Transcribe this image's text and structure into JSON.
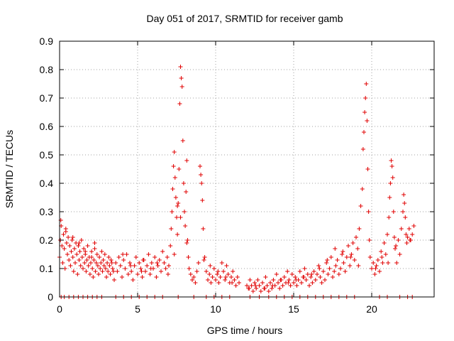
{
  "chart_data": {
    "type": "scatter",
    "title": "Day 051 of 2017, SRMTID for receiver gamb",
    "xlabel": "GPS time / hours",
    "ylabel": "SRMTID / TECUs",
    "xlim": [
      0,
      24
    ],
    "ylim": [
      0,
      0.9
    ],
    "xticks": [
      0,
      5,
      10,
      15,
      20
    ],
    "xtick_labels": [
      "0",
      "5",
      "10",
      "15",
      "20"
    ],
    "yticks": [
      0,
      0.1,
      0.2,
      0.3,
      0.4,
      0.5,
      0.6,
      0.7,
      0.8,
      0.9
    ],
    "ytick_labels": [
      "0",
      "0.1",
      "0.2",
      "0.3",
      "0.4",
      "0.5",
      "0.6",
      "0.7",
      "0.8",
      "0.9"
    ],
    "grid": true,
    "marker": "+",
    "series": [
      {
        "name": "SRMTID",
        "color": "#e00000",
        "x": [
          0.0,
          0.05,
          0.1,
          0.15,
          0.2,
          0.25,
          0.3,
          0.35,
          0.4,
          0.45,
          0.5,
          0.55,
          0.6,
          0.65,
          0.7,
          0.75,
          0.8,
          0.85,
          0.9,
          0.95,
          1.0,
          1.05,
          1.1,
          1.15,
          1.2,
          1.25,
          1.3,
          1.35,
          1.4,
          1.45,
          1.5,
          1.55,
          1.6,
          1.65,
          1.7,
          1.75,
          1.8,
          1.85,
          1.9,
          1.95,
          2.0,
          2.05,
          2.1,
          2.15,
          2.2,
          2.25,
          2.3,
          2.35,
          2.4,
          2.45,
          2.5,
          2.55,
          2.6,
          2.65,
          2.7,
          2.75,
          2.8,
          2.85,
          2.9,
          2.95,
          3.0,
          3.05,
          3.1,
          3.15,
          3.2,
          3.25,
          3.3,
          3.4,
          3.5,
          3.6,
          3.7,
          3.8,
          3.9,
          4.0,
          4.1,
          4.2,
          4.3,
          4.4,
          4.5,
          4.6,
          4.7,
          4.8,
          4.9,
          5.0,
          5.1,
          5.2,
          5.3,
          5.4,
          5.5,
          5.6,
          5.7,
          5.8,
          5.9,
          6.0,
          6.1,
          6.2,
          6.3,
          6.4,
          6.5,
          6.6,
          6.7,
          6.8,
          6.9,
          7.0,
          7.1,
          7.15,
          7.2,
          7.25,
          7.3,
          7.35,
          7.4,
          7.45,
          7.5,
          7.55,
          7.6,
          7.65,
          7.7,
          7.75,
          7.8,
          7.85,
          7.9,
          7.95,
          8.0,
          8.05,
          8.1,
          8.15,
          8.2,
          8.25,
          8.3,
          8.4,
          8.5,
          8.6,
          8.7,
          8.8,
          8.9,
          9.0,
          9.05,
          9.1,
          9.15,
          9.2,
          9.3,
          9.4,
          9.5,
          9.6,
          9.7,
          9.8,
          9.9,
          10.0,
          10.1,
          10.2,
          10.3,
          10.4,
          10.5,
          10.6,
          10.7,
          10.8,
          10.9,
          11.0,
          11.1,
          11.2,
          11.3,
          11.4,
          11.5,
          12.0,
          12.1,
          12.2,
          12.3,
          12.4,
          12.5,
          12.6,
          12.7,
          12.8,
          12.9,
          13.0,
          13.1,
          13.2,
          13.3,
          13.4,
          13.5,
          13.6,
          13.7,
          13.8,
          13.9,
          14.0,
          14.1,
          14.2,
          14.3,
          14.4,
          14.5,
          14.6,
          14.7,
          14.8,
          14.9,
          15.0,
          15.1,
          15.2,
          15.3,
          15.4,
          15.5,
          15.6,
          15.7,
          15.8,
          15.9,
          16.0,
          16.1,
          16.2,
          16.3,
          16.4,
          16.5,
          16.6,
          16.7,
          16.8,
          16.9,
          17.0,
          17.1,
          17.2,
          17.3,
          17.4,
          17.5,
          17.6,
          17.7,
          17.8,
          17.9,
          18.0,
          18.1,
          18.2,
          18.3,
          18.4,
          18.5,
          18.6,
          18.7,
          18.8,
          18.9,
          19.0,
          19.1,
          19.2,
          19.3,
          19.4,
          19.45,
          19.5,
          19.55,
          19.6,
          19.65,
          19.7,
          19.75,
          19.8,
          19.85,
          19.9,
          20.0,
          20.1,
          20.2,
          20.3,
          20.4,
          20.5,
          20.6,
          20.7,
          20.8,
          20.9,
          21.0,
          21.1,
          21.15,
          21.2,
          21.25,
          21.3,
          21.35,
          21.4,
          21.45,
          21.5,
          21.6,
          21.7,
          21.8,
          21.9,
          22.0,
          22.05,
          22.1,
          22.15,
          22.2,
          22.25,
          22.3,
          22.4,
          22.5,
          22.6,
          22.7,
          0.1,
          0.3,
          0.6,
          0.9,
          1.2,
          1.5,
          1.8,
          2.1,
          2.4,
          2.7,
          3.6,
          4.1,
          4.6,
          5.1,
          5.6,
          6.1,
          6.6,
          7.6,
          8.6,
          9.4,
          9.9,
          10.4,
          10.9,
          12.2,
          12.8,
          13.4,
          13.9,
          14.4,
          14.9,
          15.4,
          15.9,
          16.4,
          16.9,
          17.4,
          17.9,
          18.4,
          18.9,
          20.5,
          21.0,
          21.8,
          22.3,
          22.6,
          0.08,
          0.4,
          0.85,
          1.25,
          1.65,
          2.05,
          2.25,
          3.35,
          3.45,
          4.05,
          4.55,
          5.25,
          5.35,
          5.85,
          6.25,
          6.95,
          7.35,
          7.55,
          7.75,
          8.15,
          9.25,
          9.65,
          10.15,
          10.65,
          11.05,
          12.15,
          12.55,
          13.15,
          13.65,
          14.15,
          14.65,
          15.15,
          15.65,
          16.15,
          16.65,
          17.15,
          17.65,
          18.15,
          18.65,
          19.15,
          20.25,
          20.65,
          21.05,
          21.55,
          22.45
        ],
        "y": [
          0.14,
          0.2,
          0.25,
          0.18,
          0.12,
          0.22,
          0.17,
          0.1,
          0.24,
          0.19,
          0.15,
          0.21,
          0.13,
          0.18,
          0.11,
          0.16,
          0.2,
          0.14,
          0.09,
          0.17,
          0.12,
          0.19,
          0.15,
          0.08,
          0.18,
          0.13,
          0.16,
          0.11,
          0.2,
          0.14,
          0.1,
          0.17,
          0.12,
          0.15,
          0.09,
          0.13,
          0.18,
          0.11,
          0.14,
          0.08,
          0.12,
          0.16,
          0.1,
          0.07,
          0.13,
          0.17,
          0.09,
          0.12,
          0.15,
          0.11,
          0.08,
          0.14,
          0.1,
          0.12,
          0.16,
          0.09,
          0.13,
          0.11,
          0.15,
          0.1,
          0.07,
          0.12,
          0.09,
          0.14,
          0.11,
          0.08,
          0.13,
          0.1,
          0.06,
          0.12,
          0.09,
          0.14,
          0.11,
          0.07,
          0.13,
          0.1,
          0.15,
          0.08,
          0.12,
          0.09,
          0.06,
          0.11,
          0.14,
          0.08,
          0.12,
          0.1,
          0.07,
          0.13,
          0.09,
          0.11,
          0.15,
          0.08,
          0.12,
          0.1,
          0.14,
          0.07,
          0.11,
          0.13,
          0.09,
          0.16,
          0.12,
          0.1,
          0.14,
          0.11,
          0.18,
          0.24,
          0.3,
          0.38,
          0.46,
          0.51,
          0.42,
          0.35,
          0.28,
          0.22,
          0.33,
          0.45,
          0.68,
          0.81,
          0.77,
          0.74,
          0.55,
          0.4,
          0.3,
          0.25,
          0.37,
          0.48,
          0.2,
          0.14,
          0.1,
          0.08,
          0.06,
          0.07,
          0.05,
          0.09,
          0.12,
          0.46,
          0.43,
          0.4,
          0.34,
          0.24,
          0.14,
          0.09,
          0.06,
          0.08,
          0.05,
          0.07,
          0.1,
          0.06,
          0.08,
          0.05,
          0.07,
          0.12,
          0.09,
          0.06,
          0.11,
          0.08,
          0.05,
          0.07,
          0.09,
          0.06,
          0.04,
          0.07,
          0.05,
          0.04,
          0.03,
          0.06,
          0.04,
          0.02,
          0.05,
          0.03,
          0.06,
          0.04,
          0.02,
          0.05,
          0.03,
          0.07,
          0.04,
          0.02,
          0.05,
          0.03,
          0.06,
          0.04,
          0.08,
          0.05,
          0.03,
          0.06,
          0.04,
          0.07,
          0.05,
          0.09,
          0.06,
          0.04,
          0.08,
          0.05,
          0.07,
          0.04,
          0.06,
          0.09,
          0.05,
          0.07,
          0.1,
          0.06,
          0.08,
          0.04,
          0.07,
          0.05,
          0.09,
          0.06,
          0.08,
          0.11,
          0.07,
          0.05,
          0.09,
          0.06,
          0.12,
          0.08,
          0.1,
          0.14,
          0.07,
          0.09,
          0.11,
          0.13,
          0.08,
          0.1,
          0.15,
          0.12,
          0.09,
          0.14,
          0.18,
          0.11,
          0.15,
          0.19,
          0.13,
          0.21,
          0.17,
          0.24,
          0.32,
          0.38,
          0.52,
          0.58,
          0.65,
          0.7,
          0.75,
          0.62,
          0.45,
          0.3,
          0.2,
          0.14,
          0.1,
          0.12,
          0.08,
          0.11,
          0.13,
          0.09,
          0.16,
          0.12,
          0.19,
          0.15,
          0.22,
          0.28,
          0.35,
          0.4,
          0.48,
          0.46,
          0.42,
          0.3,
          0.21,
          0.17,
          0.12,
          0.2,
          0.15,
          0.24,
          0.3,
          0.36,
          0.33,
          0.28,
          0.22,
          0.19,
          0.21,
          0.24,
          0.2,
          0.22,
          0.25,
          0,
          0,
          0,
          0,
          0,
          0,
          0,
          0,
          0,
          0,
          0,
          0,
          0,
          0,
          0,
          0,
          0,
          0,
          0,
          0,
          0,
          0,
          0,
          0,
          0,
          0,
          0,
          0,
          0,
          0,
          0,
          0,
          0,
          0,
          0,
          0,
          0,
          0,
          0,
          0,
          0,
          0,
          0.27,
          0.23,
          0.21,
          0.19,
          0.16,
          0.14,
          0.19,
          0.12,
          0.09,
          0.15,
          0.11,
          0.09,
          0.13,
          0.1,
          0.12,
          0.08,
          0.15,
          0.32,
          0.28,
          0.19,
          0.13,
          0.11,
          0.09,
          0.07,
          0.05,
          0.03,
          0.04,
          0.03,
          0.04,
          0.06,
          0.05,
          0.06,
          0.07,
          0.08,
          0.1,
          0.13,
          0.17,
          0.16,
          0.14,
          0.11,
          0.1,
          0.14,
          0.12,
          0.18,
          0.2
        ]
      }
    ]
  }
}
